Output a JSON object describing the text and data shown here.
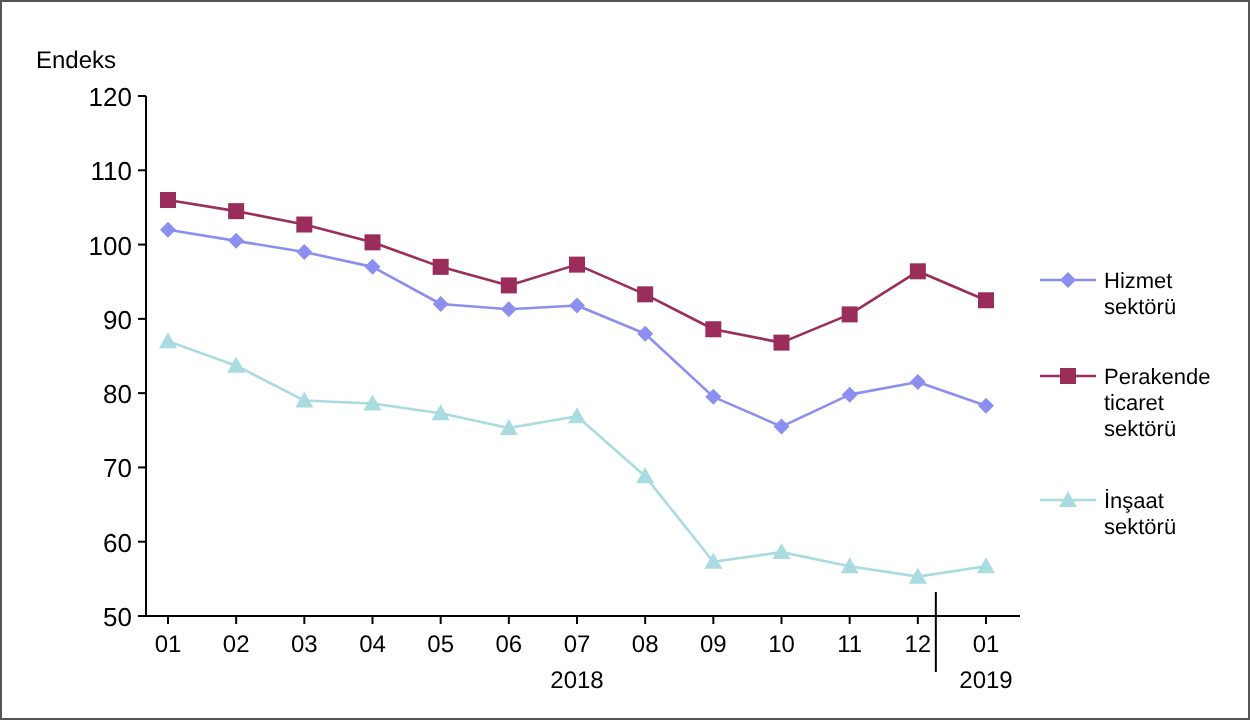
{
  "chart_data": {
    "type": "line",
    "ylabel": "Endeks",
    "categories": [
      "01",
      "02",
      "03",
      "04",
      "05",
      "06",
      "07",
      "08",
      "09",
      "10",
      "11",
      "12",
      "01"
    ],
    "ylim": [
      50,
      120
    ],
    "yticks": [
      50,
      60,
      70,
      80,
      90,
      100,
      110,
      120
    ],
    "grid": false,
    "legend": "right",
    "series": [
      {
        "name": "Hizmet sektörü",
        "color": "#8c8ff0",
        "marker": "diamond",
        "values": [
          102,
          100.5,
          99,
          97,
          92,
          91.3,
          91.8,
          88,
          79.5,
          75.5,
          79.8,
          81.5,
          78.3
        ]
      },
      {
        "name": "Perakende ticaret sektörü",
        "color": "#9b2d5a",
        "marker": "square",
        "values": [
          106,
          104.5,
          102.7,
          100.3,
          97,
          94.5,
          97.3,
          93.3,
          88.6,
          86.8,
          90.6,
          96.4,
          92.5
        ]
      },
      {
        "name": "İnşaat sektörü",
        "color": "#a8dce0",
        "marker": "triangle",
        "values": [
          87,
          83.7,
          79,
          78.6,
          77.3,
          75.3,
          76.9,
          68.8,
          57.3,
          58.6,
          56.7,
          55.3,
          56.7
        ]
      }
    ],
    "annotations": [
      "2018",
      "2019"
    ]
  }
}
